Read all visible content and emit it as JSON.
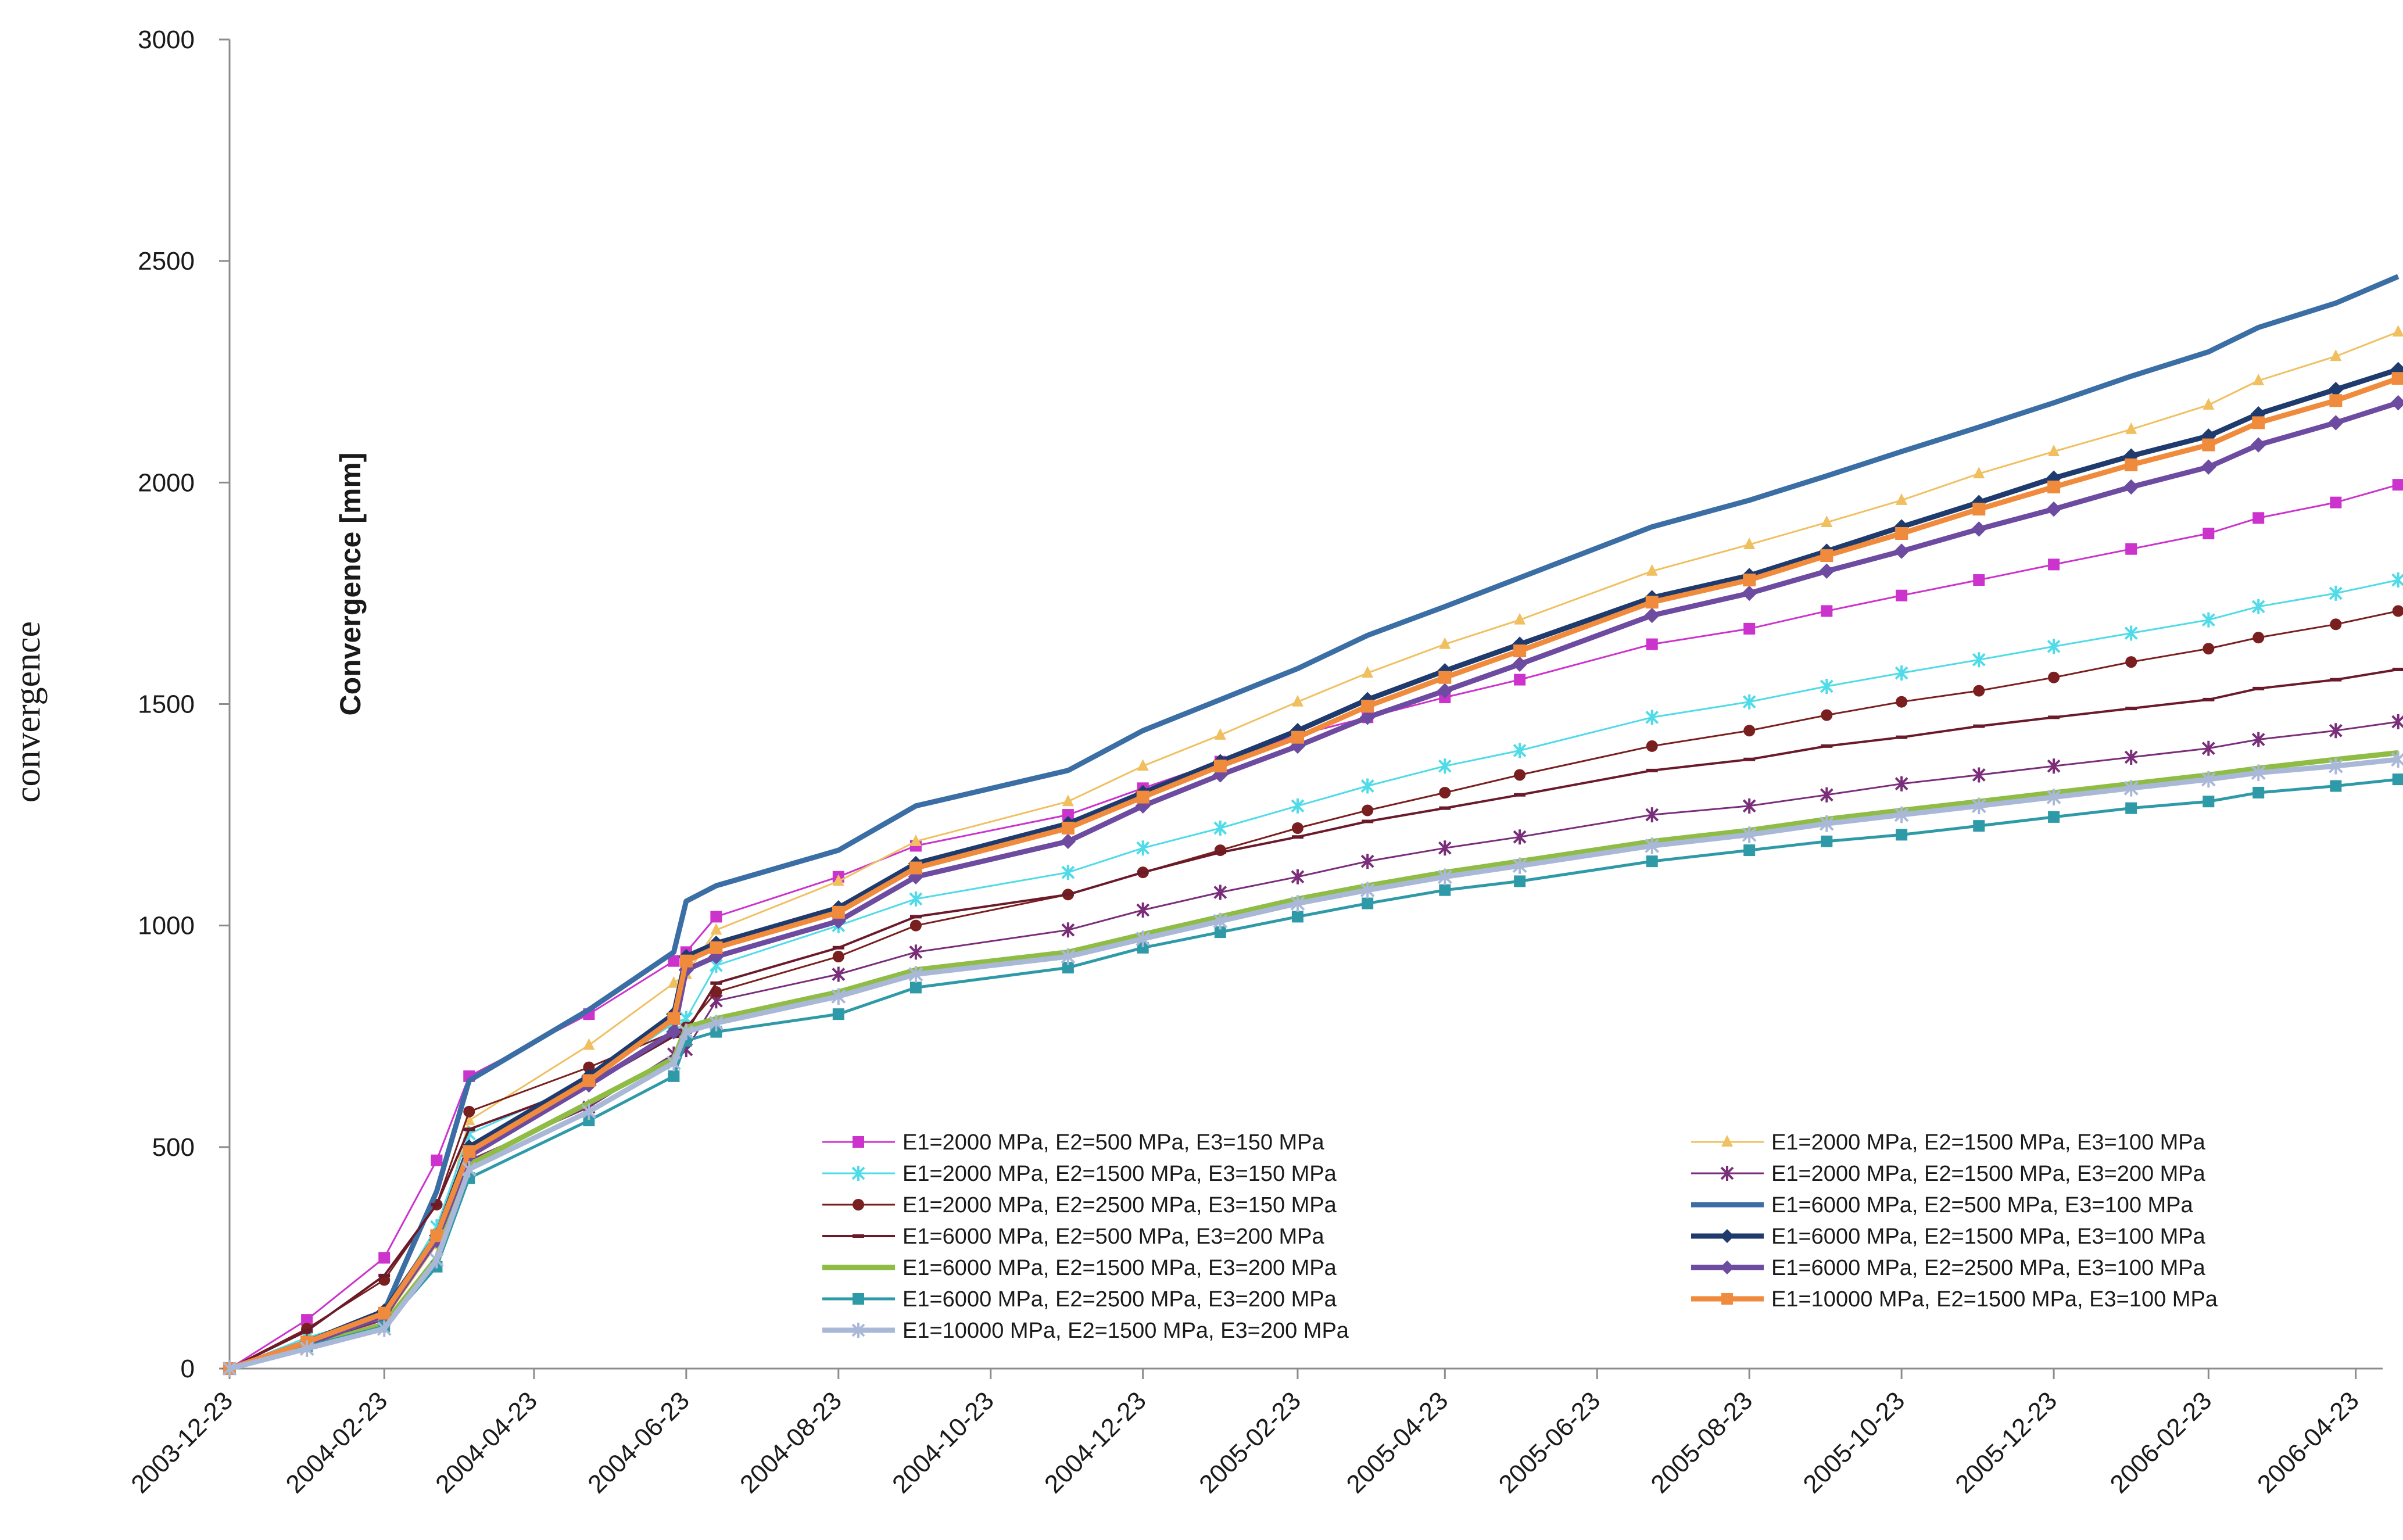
{
  "chart_data": {
    "type": "line",
    "title": "",
    "ylabel": "convergence",
    "ylabel_inner": "Convergence [mm]",
    "xlabel": "",
    "ylim": [
      0,
      3000
    ],
    "yticks": [
      "0",
      "500",
      "1000",
      "1500",
      "2000",
      "2500",
      "3000"
    ],
    "xticks": [
      "2003-12-23",
      "2004-02-23",
      "2004-04-23",
      "2004-06-23",
      "2004-08-23",
      "2004-10-23",
      "2004-12-23",
      "2005-02-23",
      "2005-04-23",
      "2005-06-23",
      "2005-08-23",
      "2005-10-23",
      "2005-12-23",
      "2006-02-23",
      "2006-04-23"
    ],
    "x_dates": [
      "2003-12-23",
      "2004-01-23",
      "2004-02-23",
      "2004-03-15",
      "2004-03-28",
      "2004-05-15",
      "2004-06-18",
      "2004-06-23",
      "2004-07-05",
      "2004-08-23",
      "2004-09-23",
      "2004-11-23",
      "2004-12-23",
      "2005-01-23",
      "2005-02-23",
      "2005-03-23",
      "2005-04-23",
      "2005-05-23",
      "2005-07-15",
      "2005-08-23",
      "2005-09-23",
      "2005-10-23",
      "2005-11-23",
      "2005-12-23",
      "2006-01-23",
      "2006-02-23",
      "2006-03-15",
      "2006-04-15",
      "2006-05-10"
    ],
    "series": [
      {
        "name": "E1=2000 MPa, E2=500 MPa, E3=150 MPa",
        "color": "#cc33cc",
        "marker": "square",
        "width": 3,
        "values": [
          0,
          110,
          250,
          470,
          660,
          800,
          920,
          940,
          1020,
          1110,
          1180,
          1250,
          1310,
          1370,
          1430,
          1470,
          1515,
          1555,
          1635,
          1670,
          1710,
          1745,
          1780,
          1815,
          1850,
          1885,
          1920,
          1955,
          1995
        ]
      },
      {
        "name": "E1=2000 MPa, E2=1500 MPa, E3=100 MPa",
        "color": "#f0c060",
        "marker": "triangle",
        "width": 3,
        "values": [
          0,
          50,
          110,
          280,
          560,
          730,
          870,
          890,
          990,
          1100,
          1190,
          1280,
          1360,
          1430,
          1505,
          1570,
          1635,
          1690,
          1800,
          1860,
          1910,
          1960,
          2020,
          2070,
          2120,
          2175,
          2230,
          2285,
          2340
        ]
      },
      {
        "name": "E1=2000 MPa, E2=1500 MPa, E3=150 MPa",
        "color": "#4fdbe8",
        "marker": "star",
        "width": 3,
        "values": [
          0,
          70,
          120,
          320,
          530,
          650,
          780,
          790,
          910,
          1000,
          1060,
          1120,
          1175,
          1220,
          1270,
          1315,
          1360,
          1395,
          1470,
          1505,
          1540,
          1570,
          1600,
          1630,
          1660,
          1690,
          1720,
          1750,
          1780
        ]
      },
      {
        "name": "E1=2000 MPa, E2=1500 MPa, E3=200 MPa",
        "color": "#7a2e7a",
        "marker": "star",
        "width": 3,
        "values": [
          0,
          55,
          110,
          290,
          470,
          590,
          710,
          720,
          830,
          890,
          940,
          990,
          1035,
          1075,
          1110,
          1145,
          1175,
          1200,
          1250,
          1270,
          1295,
          1320,
          1340,
          1360,
          1380,
          1400,
          1420,
          1440,
          1460
        ]
      },
      {
        "name": "E1=2000 MPa, E2=2500 MPa, E3=150 MPa",
        "color": "#7a1f1f",
        "marker": "circle",
        "width": 3,
        "values": [
          0,
          90,
          200,
          370,
          580,
          680,
          760,
          770,
          850,
          930,
          1000,
          1070,
          1120,
          1170,
          1220,
          1260,
          1300,
          1340,
          1405,
          1440,
          1475,
          1505,
          1530,
          1560,
          1595,
          1625,
          1650,
          1680,
          1710
        ]
      },
      {
        "name": "E1=6000 MPa, E2=500 MPa, E3=100 MPa",
        "color": "#3a6ea5",
        "marker": "none",
        "width": 9,
        "values": [
          0,
          60,
          130,
          400,
          650,
          810,
          940,
          1055,
          1090,
          1170,
          1270,
          1350,
          1440,
          1510,
          1580,
          1655,
          1720,
          1785,
          1900,
          1960,
          2015,
          2070,
          2125,
          2180,
          2240,
          2295,
          2350,
          2405,
          2465
        ]
      },
      {
        "name": "E1=6000 MPa, E2=500 MPa, E3=200 MPa",
        "color": "#6b1a2a",
        "marker": "dash",
        "width": 4,
        "values": [
          0,
          85,
          210,
          370,
          540,
          640,
          750,
          760,
          870,
          950,
          1020,
          1070,
          1120,
          1165,
          1200,
          1235,
          1265,
          1295,
          1350,
          1375,
          1405,
          1425,
          1450,
          1470,
          1490,
          1510,
          1535,
          1555,
          1578
        ]
      },
      {
        "name": "E1=6000 MPa, E2=1500 MPa, E3=100 MPa",
        "color": "#1f3b6e",
        "marker": "diamond",
        "width": 9,
        "values": [
          0,
          60,
          130,
          300,
          500,
          660,
          800,
          930,
          960,
          1040,
          1140,
          1230,
          1300,
          1370,
          1440,
          1510,
          1575,
          1635,
          1740,
          1790,
          1845,
          1900,
          1955,
          2010,
          2060,
          2105,
          2155,
          2210,
          2255
        ]
      },
      {
        "name": "E1=6000 MPa, E2=1500 MPa, E3=200 MPa",
        "color": "#8fbc45",
        "marker": "none",
        "width": 9,
        "values": [
          0,
          50,
          100,
          250,
          460,
          600,
          700,
          770,
          790,
          850,
          900,
          940,
          980,
          1020,
          1060,
          1090,
          1120,
          1145,
          1190,
          1215,
          1240,
          1260,
          1280,
          1300,
          1320,
          1340,
          1355,
          1375,
          1390
        ]
      },
      {
        "name": "E1=6000 MPa, E2=2500 MPa, E3=100 MPa",
        "color": "#6d4ba0",
        "marker": "diamond",
        "width": 9,
        "values": [
          0,
          55,
          120,
          290,
          480,
          640,
          760,
          900,
          930,
          1010,
          1110,
          1190,
          1270,
          1340,
          1405,
          1470,
          1530,
          1590,
          1700,
          1750,
          1800,
          1845,
          1895,
          1940,
          1990,
          2035,
          2085,
          2135,
          2180
        ]
      },
      {
        "name": "E1=6000 MPa, E2=2500 MPa, E3=200 MPa",
        "color": "#2e9aa8",
        "marker": "square",
        "width": 5,
        "values": [
          0,
          50,
          95,
          230,
          430,
          560,
          660,
          740,
          760,
          800,
          860,
          905,
          950,
          985,
          1020,
          1050,
          1080,
          1100,
          1145,
          1170,
          1190,
          1205,
          1225,
          1245,
          1265,
          1280,
          1300,
          1315,
          1330
        ]
      },
      {
        "name": "E1=10000 MPa, E2=1500 MPa, E3=100 MPa",
        "color": "#f08a3c",
        "marker": "square",
        "width": 9,
        "values": [
          0,
          60,
          125,
          300,
          490,
          650,
          790,
          920,
          950,
          1030,
          1130,
          1220,
          1290,
          1360,
          1425,
          1495,
          1560,
          1620,
          1730,
          1780,
          1835,
          1885,
          1940,
          1990,
          2040,
          2085,
          2135,
          2185,
          2235
        ]
      },
      {
        "name": "E1=10000 MPa, E2=1500 MPa, E3=200 MPa",
        "color": "#aab8d8",
        "marker": "star",
        "width": 9,
        "values": [
          0,
          45,
          90,
          245,
          450,
          580,
          690,
          760,
          780,
          840,
          890,
          930,
          970,
          1010,
          1050,
          1080,
          1110,
          1135,
          1180,
          1205,
          1230,
          1250,
          1270,
          1290,
          1310,
          1330,
          1345,
          1360,
          1375
        ]
      }
    ]
  }
}
